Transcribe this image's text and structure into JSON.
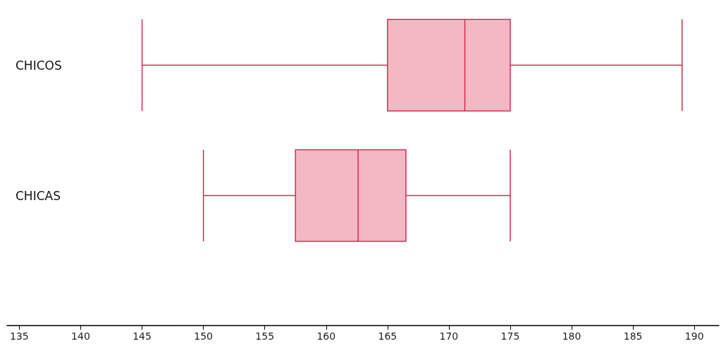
{
  "chart_data": {
    "type": "box",
    "orientation": "horizontal",
    "categories": [
      "CHICOS",
      "CHICAS"
    ],
    "boxes": [
      {
        "low": 145,
        "q1": 165,
        "median": 171.3,
        "q3": 175,
        "high": 189
      },
      {
        "low": 150,
        "q1": 157.5,
        "median": 162.6,
        "q3": 166.5,
        "high": 175
      }
    ],
    "color": "#d9294f",
    "xlim": [
      134,
      192
    ],
    "xticks": [
      135,
      140,
      145,
      150,
      155,
      160,
      165,
      170,
      175,
      180,
      185,
      190
    ],
    "grid": false
  }
}
